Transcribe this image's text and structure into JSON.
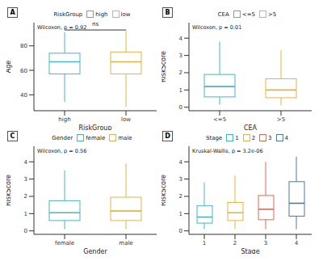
{
  "chart_data": [
    {
      "type": "box",
      "panel_label": "A",
      "legend_title": "RiskGroup",
      "legend": "top",
      "x_label": "RiskGroup",
      "y_label": "Age",
      "annotation": "Wilcoxon, p = 0.92",
      "categories": [
        "high",
        "low"
      ],
      "colors": [
        "#47B5C6",
        "#E3B444"
      ],
      "boxes": [
        {
          "min": 34,
          "q1": 57,
          "median": 67,
          "q3": 74,
          "max": 91
        },
        {
          "min": 30,
          "q1": 57,
          "median": 67,
          "q3": 75,
          "max": 92
        }
      ],
      "significance": {
        "text": "ns",
        "y": 93
      },
      "ylim": [
        27,
        99
      ],
      "yticks": [
        40,
        60,
        80
      ]
    },
    {
      "type": "box",
      "panel_label": "B",
      "legend_title": "CEA",
      "legend": "top",
      "x_label": "CEA",
      "y_label": "RiskScore",
      "annotation": "Wilcoxon, p = 0.01",
      "categories": [
        "<=5",
        ">5"
      ],
      "colors": [
        "#47B5C6",
        "#E3B444"
      ],
      "boxes": [
        {
          "min": 0.15,
          "q1": 0.6,
          "median": 1.2,
          "q3": 1.9,
          "max": 3.8
        },
        {
          "min": 0.1,
          "q1": 0.55,
          "median": 1.0,
          "q3": 1.65,
          "max": 3.3
        }
      ],
      "ylim": [
        -0.2,
        4.9
      ],
      "yticks": [
        0,
        1,
        2,
        3,
        4
      ]
    },
    {
      "type": "box",
      "panel_label": "C",
      "legend_title": "Gender",
      "legend": "top",
      "x_label": "Gender",
      "y_label": "RiskScore",
      "annotation": "Wilcoxon, p = 0.56",
      "categories": [
        "female",
        "male"
      ],
      "colors": [
        "#47B5C6",
        "#E3B444"
      ],
      "boxes": [
        {
          "min": 0.1,
          "q1": 0.6,
          "median": 1.05,
          "q3": 1.75,
          "max": 3.5
        },
        {
          "min": 0.1,
          "q1": 0.6,
          "median": 1.15,
          "q3": 1.95,
          "max": 3.9
        }
      ],
      "ylim": [
        -0.2,
        4.9
      ],
      "yticks": [
        0,
        1,
        2,
        3,
        4
      ]
    },
    {
      "type": "box",
      "panel_label": "D",
      "legend_title": "Stage",
      "legend": "top",
      "x_label": "Stage",
      "y_label": "RiskScore",
      "annotation": "Kruskal-Wallis, p = 3.2e-06",
      "categories": [
        "1",
        "2",
        "3",
        "4"
      ],
      "colors": [
        "#47B5C6",
        "#E3B444",
        "#DD6A4E",
        "#4E7A9A"
      ],
      "boxes": [
        {
          "min": 0.1,
          "q1": 0.45,
          "median": 0.8,
          "q3": 1.45,
          "max": 2.8
        },
        {
          "min": 0.1,
          "q1": 0.6,
          "median": 1.05,
          "q3": 1.65,
          "max": 3.2
        },
        {
          "min": 0.1,
          "q1": 0.65,
          "median": 1.25,
          "q3": 2.05,
          "max": 4.0
        },
        {
          "min": 0.1,
          "q1": 0.85,
          "median": 1.6,
          "q3": 2.85,
          "max": 4.3
        }
      ],
      "ylim": [
        -0.2,
        4.9
      ],
      "yticks": [
        0,
        1,
        2,
        3,
        4
      ]
    }
  ]
}
